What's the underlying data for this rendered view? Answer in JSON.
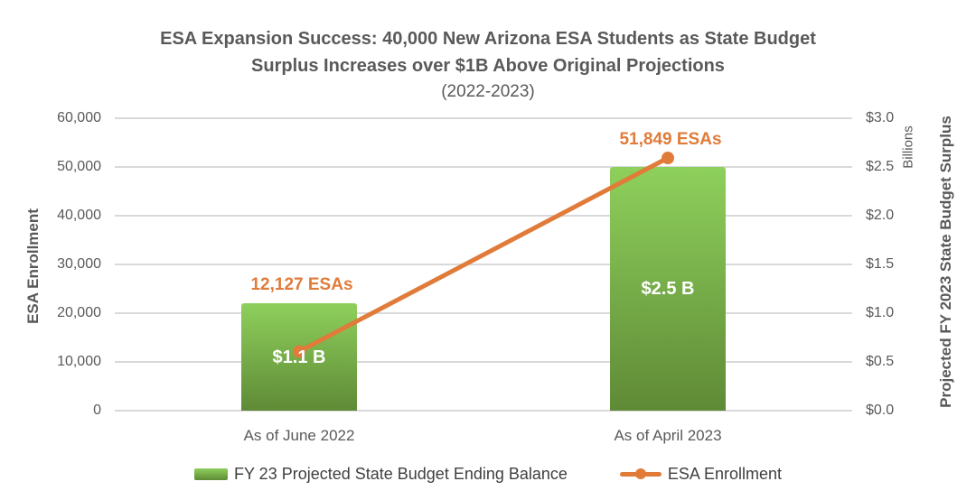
{
  "header": {
    "title_line1": "ESA Expansion Success: 40,000 New Arizona ESA Students as State Budget",
    "title_line2": "Surplus Increases over $1B Above Original Projections",
    "subtitle": "(2022-2023)"
  },
  "chart_data": {
    "type": "combo-bar-line",
    "title": "ESA Expansion Success: 40,000 New Arizona ESA Students as State Budget Surplus Increases over $1B Above Original Projections",
    "subtitle": "(2022-2023)",
    "categories": [
      "As of June 2022",
      "As of April 2023"
    ],
    "series": [
      {
        "name": "FY 23 Projected State Budget Ending Balance",
        "type": "bar",
        "axis": "right",
        "values": [
          1.1,
          2.5
        ],
        "value_labels": [
          "$1.1 B",
          "$2.5 B"
        ]
      },
      {
        "name": "ESA Enrollment",
        "type": "line",
        "axis": "left",
        "values": [
          12127,
          51849
        ],
        "value_labels": [
          "12,127 ESAs",
          "51,849 ESAs"
        ]
      }
    ],
    "left_axis": {
      "title": "ESA Enrollment",
      "min": 0,
      "max": 60000,
      "tick_labels": [
        "60,000",
        "50,000",
        "40,000",
        "30,000",
        "20,000",
        "10,000",
        "0"
      ]
    },
    "right_axis": {
      "title": "Projected FY 2023 State Budget Surplus",
      "unit": "Billions",
      "min": 0,
      "max": 3.0,
      "tick_labels": [
        "$3.0",
        "$2.5",
        "$2.0",
        "$1.5",
        "$1.0",
        "$0.5",
        "$0.0"
      ]
    },
    "grid": true,
    "legend_position": "bottom"
  },
  "colors": {
    "title_text": "#595959",
    "axis_text": "#595959",
    "legend_text": "#404040",
    "grid": "#d9d9d9",
    "bar_gradient_top": "#8ed05c",
    "bar_gradient_bottom": "#5f8a36",
    "line_orange": "#e07b39",
    "bar_label_text": "#ffffff"
  }
}
